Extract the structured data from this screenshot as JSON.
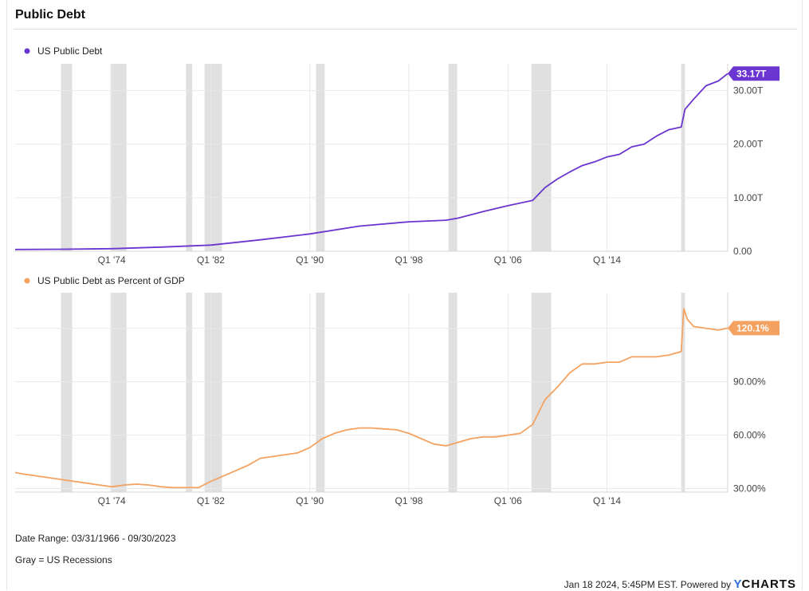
{
  "header": {
    "title": "Public Debt"
  },
  "colors": {
    "series1": "#6a35d0",
    "series2": "#f4a261",
    "recession": "#e0e0e0",
    "grid": "#e9e9e9",
    "axis_text": "#444444"
  },
  "chart_data": [
    {
      "type": "line",
      "legend": "top-left",
      "grid": true,
      "xlim": [
        1966.2,
        2023.75
      ],
      "x_ticks": [
        {
          "x": 1974.0,
          "label": "Q1 '74"
        },
        {
          "x": 1982.0,
          "label": "Q1 '82"
        },
        {
          "x": 1990.0,
          "label": "Q1 '90"
        },
        {
          "x": 1998.0,
          "label": "Q1 '98"
        },
        {
          "x": 2006.0,
          "label": "Q1 '06"
        },
        {
          "x": 2014.0,
          "label": "Q1 '14"
        }
      ],
      "ylim": [
        0,
        35
      ],
      "y_ticks": [
        {
          "v": 0,
          "label": "0.00"
        },
        {
          "v": 10,
          "label": "10.00T"
        },
        {
          "v": 20,
          "label": "20.00T"
        },
        {
          "v": 30,
          "label": "30.00T"
        }
      ],
      "recessions": [
        [
          1969.9,
          1970.8
        ],
        [
          1973.9,
          1975.2
        ],
        [
          1980.0,
          1980.5
        ],
        [
          1981.5,
          1982.9
        ],
        [
          1990.5,
          1991.2
        ],
        [
          2001.2,
          2001.9
        ],
        [
          2007.9,
          2009.5
        ],
        [
          2020.0,
          2020.3
        ]
      ],
      "series": [
        {
          "name": "US Public Debt",
          "last_label": "33.17T",
          "x": [
            1966.2,
            1970,
            1974,
            1978,
            1982,
            1986,
            1990,
            1994,
            1998,
            2001,
            2002,
            2004,
            2006,
            2008,
            2009,
            2010,
            2011,
            2012,
            2013,
            2014,
            2015,
            2016,
            2017,
            2018,
            2019,
            2020.0,
            2020.3,
            2021,
            2022,
            2023,
            2023.75
          ],
          "values": [
            0.33,
            0.37,
            0.48,
            0.77,
            1.14,
            2.13,
            3.23,
            4.69,
            5.5,
            5.8,
            6.2,
            7.4,
            8.5,
            9.5,
            11.9,
            13.5,
            14.8,
            16.0,
            16.7,
            17.6,
            18.1,
            19.5,
            20.0,
            21.5,
            22.7,
            23.2,
            26.5,
            28.4,
            30.9,
            31.8,
            33.17
          ]
        }
      ]
    },
    {
      "type": "line",
      "legend": "top-left",
      "grid": true,
      "xlim": [
        1966.2,
        2023.75
      ],
      "x_ticks": [
        {
          "x": 1974.0,
          "label": "Q1 '74"
        },
        {
          "x": 1982.0,
          "label": "Q1 '82"
        },
        {
          "x": 1990.0,
          "label": "Q1 '90"
        },
        {
          "x": 1998.0,
          "label": "Q1 '98"
        },
        {
          "x": 2006.0,
          "label": "Q1 '06"
        },
        {
          "x": 2014.0,
          "label": "Q1 '14"
        }
      ],
      "ylim": [
        28,
        140
      ],
      "y_ticks": [
        {
          "v": 30,
          "label": "30.00%"
        },
        {
          "v": 60,
          "label": "60.00%"
        },
        {
          "v": 90,
          "label": "90.00%"
        },
        {
          "v": 120,
          "label": "120.00%"
        }
      ],
      "recessions": [
        [
          1969.9,
          1970.8
        ],
        [
          1973.9,
          1975.2
        ],
        [
          1980.0,
          1980.5
        ],
        [
          1981.5,
          1982.9
        ],
        [
          1990.5,
          1991.2
        ],
        [
          2001.2,
          2001.9
        ],
        [
          2007.9,
          2009.5
        ],
        [
          2020.0,
          2020.3
        ]
      ],
      "series": [
        {
          "name": "US Public Debt as Percent of GDP",
          "last_label": "120.1%",
          "x": [
            1966.2,
            1967,
            1968,
            1969,
            1970,
            1971,
            1972,
            1973,
            1974,
            1975,
            1976,
            1977,
            1978,
            1979,
            1980,
            1981,
            1982,
            1983,
            1984,
            1985,
            1986,
            1987,
            1988,
            1989,
            1990,
            1991,
            1992,
            1993,
            1994,
            1995,
            1996,
            1997,
            1998,
            1999,
            2000,
            2001,
            2002,
            2003,
            2004,
            2005,
            2006,
            2007,
            2008,
            2009,
            2010,
            2011,
            2012,
            2013,
            2014,
            2015,
            2016,
            2017,
            2018,
            2019,
            2020.0,
            2020.2,
            2020.5,
            2021,
            2022,
            2023,
            2023.75
          ],
          "values": [
            39,
            38,
            37,
            36,
            35,
            34,
            33,
            32,
            31,
            32,
            32.5,
            32,
            31,
            30.5,
            30.5,
            30.5,
            34,
            37,
            40,
            43,
            47,
            48,
            49,
            50,
            53,
            58,
            61,
            63,
            64,
            64,
            63.5,
            63,
            61,
            58,
            55,
            54,
            56,
            58,
            59,
            59,
            60,
            61,
            66,
            80,
            87,
            95,
            100,
            100,
            101,
            101,
            104,
            104,
            104,
            105,
            107,
            131,
            125,
            121,
            120,
            119,
            120.1
          ]
        }
      ]
    }
  ],
  "footer": {
    "date_range": "Date Range: 03/31/1966 - 09/30/2023",
    "note": "Gray = US Recessions",
    "timestamp": "Jan 18 2024, 5:45PM EST. Powered by",
    "brand_y": "Y",
    "brand_rest": "CHARTS"
  }
}
